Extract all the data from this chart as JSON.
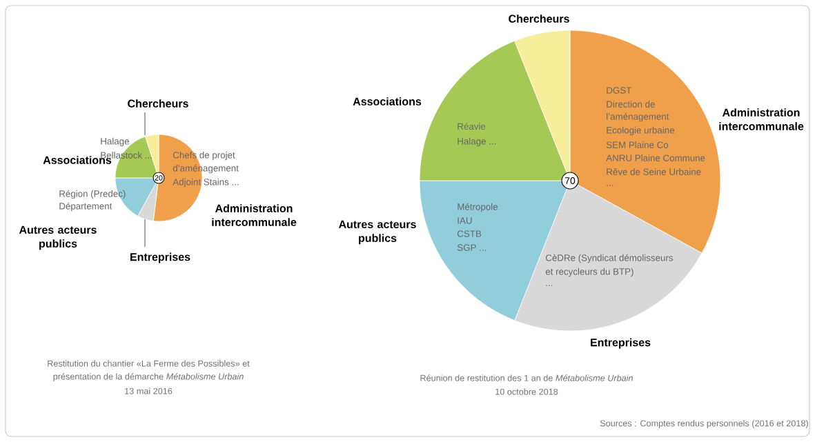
{
  "chart_data": [
    {
      "type": "pie",
      "categories": [
        "Administration intercommunale",
        "Entreprises",
        "Autres acteurs publics",
        "Associations",
        "Chercheurs"
      ],
      "values": [
        52,
        6,
        17,
        20,
        5
      ],
      "colors": [
        "#f0a04b",
        "#d9d9d9",
        "#92cddc",
        "#a6c854",
        "#f7ee9c"
      ],
      "annotations": [
        "20",
        "Chefs de projet",
        "d’aménagement",
        "Adjoint Stains ...",
        "Région (Predec)",
        "Département",
        "Halage",
        "Bellastock ...",
        "Restitution du chantier «La Ferme des Possibles» et",
        "présentation de la démarche *Métabolisme Urbain*",
        "13 mai 2016"
      ]
    },
    {
      "type": "pie",
      "categories": [
        "Administration intercommunale",
        "Entreprises",
        "Autres acteurs publics",
        "Associations",
        "Chercheurs"
      ],
      "values": [
        33,
        23,
        19,
        19,
        6
      ],
      "colors": [
        "#f0a04b",
        "#d9d9d9",
        "#92cddc",
        "#a6c854",
        "#f7ee9c"
      ],
      "annotations": [
        "70",
        "DGST",
        "Direction de",
        "l’aménagement",
        "Ecologie urbaine",
        "SEM Plaine Co",
        "ANRU Plaine Commune",
        "Rêve de Seine Urbaine",
        "...",
        "Métropole",
        "IAU",
        "CSTB",
        "SGP ...",
        "CèDRe (Syndicat démolisseurs",
        "et recycleurs du BTP)",
        "...",
        "Réavie",
        "Halage ...",
        "Réunion de restitution des 1 an de *Métabolisme Urbain*",
        "10 octobre 2018",
        "Sources : Comptes rendus personnels (2016 et 2018)"
      ]
    }
  ]
}
